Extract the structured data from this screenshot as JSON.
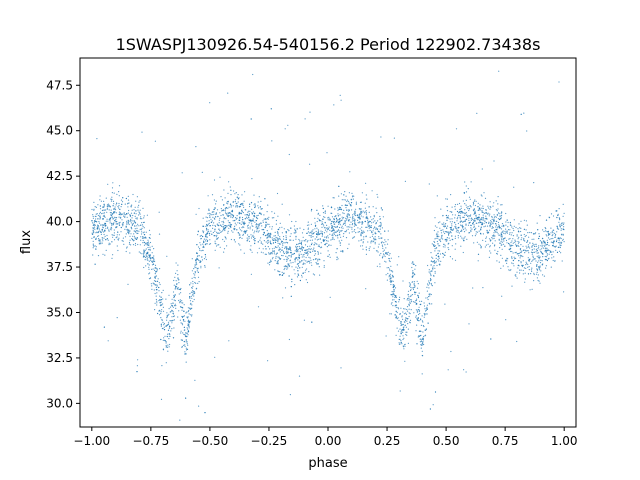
{
  "chart_data": {
    "type": "scatter",
    "title": "1SWASPJ130926.54-540156.2 Period 122902.73438s",
    "xlabel": "phase",
    "ylabel": "flux",
    "xlim": [
      -1.05,
      1.05
    ],
    "ylim": [
      28.7,
      49.0
    ],
    "xticks": [
      {
        "value": -1.0,
        "label": "−1.00"
      },
      {
        "value": -0.75,
        "label": "−0.75"
      },
      {
        "value": -0.5,
        "label": "−0.50"
      },
      {
        "value": -0.25,
        "label": "−0.25"
      },
      {
        "value": 0.0,
        "label": "0.00"
      },
      {
        "value": 0.25,
        "label": "0.25"
      },
      {
        "value": 0.5,
        "label": "0.50"
      },
      {
        "value": 0.75,
        "label": "0.75"
      },
      {
        "value": 1.0,
        "label": "1.00"
      }
    ],
    "yticks": [
      {
        "value": 30.0,
        "label": "30.0"
      },
      {
        "value": 32.5,
        "label": "32.5"
      },
      {
        "value": 35.0,
        "label": "35.0"
      },
      {
        "value": 37.5,
        "label": "37.5"
      },
      {
        "value": 40.0,
        "label": "40.0"
      },
      {
        "value": 42.5,
        "label": "42.5"
      },
      {
        "value": 45.0,
        "label": "45.0"
      },
      {
        "value": 47.5,
        "label": "47.5"
      }
    ],
    "grid": false,
    "marker_color": "#1f77b4",
    "series": [
      {
        "trend_x": [
          -1.0,
          -0.9,
          -0.8,
          -0.75,
          -0.72,
          -0.7,
          -0.68,
          -0.66,
          -0.64,
          -0.62,
          -0.6,
          -0.58,
          -0.55,
          -0.5,
          -0.4,
          -0.3,
          -0.2,
          -0.15,
          -0.1,
          0.0,
          0.1,
          0.2,
          0.25,
          0.28,
          0.3,
          0.32,
          0.34,
          0.36,
          0.38,
          0.4,
          0.42,
          0.45,
          0.5,
          0.6,
          0.7,
          0.8,
          0.85,
          0.9,
          1.0
        ],
        "trend_y": [
          39.5,
          40.2,
          39.6,
          38.2,
          36.2,
          34.5,
          33.8,
          35.0,
          37.0,
          35.0,
          33.5,
          35.5,
          38.2,
          39.6,
          40.3,
          39.8,
          38.5,
          38.1,
          38.3,
          39.6,
          40.2,
          39.6,
          38.2,
          36.2,
          34.5,
          33.8,
          35.0,
          37.0,
          35.0,
          33.5,
          35.5,
          38.2,
          39.6,
          40.3,
          39.8,
          38.5,
          38.1,
          38.3,
          39.5
        ]
      }
    ]
  }
}
